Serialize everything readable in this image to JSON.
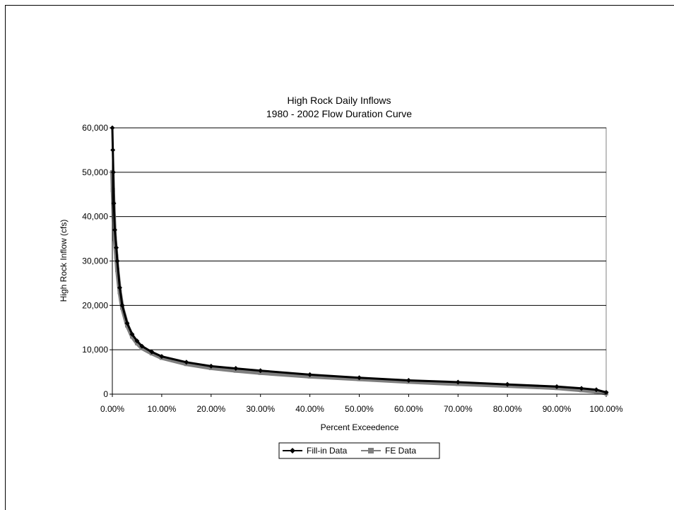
{
  "chart_data": {
    "type": "line",
    "title": "High Rock Daily Inflows",
    "subtitle": "1980 - 2002 Flow Duration Curve",
    "xlabel": "Percent Exceedence",
    "ylabel": "High Rock Inflow (cfs)",
    "xlim": [
      0,
      100
    ],
    "ylim": [
      0,
      60000
    ],
    "x_ticks": [
      0,
      10,
      20,
      30,
      40,
      50,
      60,
      70,
      80,
      90,
      100
    ],
    "x_tick_labels": [
      "0.00%",
      "10.00%",
      "20.00%",
      "30.00%",
      "40.00%",
      "50.00%",
      "60.00%",
      "70.00%",
      "80.00%",
      "90.00%",
      "100.00%"
    ],
    "y_ticks": [
      0,
      10000,
      20000,
      30000,
      40000,
      50000,
      60000
    ],
    "y_tick_labels": [
      "0",
      "10,000",
      "20,000",
      "30,000",
      "40,000",
      "50,000",
      "60,000"
    ],
    "grid": "horizontal",
    "legend_position": "bottom",
    "series": [
      {
        "name": "Fill-in Data",
        "color": "#000000",
        "marker": "diamond",
        "x": [
          0,
          0.1,
          0.2,
          0.3,
          0.5,
          0.8,
          1,
          1.5,
          2,
          3,
          4,
          5,
          6,
          8,
          10,
          15,
          20,
          25,
          30,
          40,
          50,
          60,
          70,
          80,
          90,
          95,
          98,
          100
        ],
        "y": [
          60000,
          55000,
          50000,
          43000,
          37000,
          33000,
          30000,
          24000,
          20000,
          16000,
          13500,
          12000,
          10800,
          9500,
          8500,
          7200,
          6300,
          5800,
          5300,
          4400,
          3700,
          3100,
          2700,
          2200,
          1700,
          1300,
          1000,
          400
        ]
      },
      {
        "name": "FE Data",
        "color": "#7f7f7f",
        "marker": "square",
        "x": [
          0,
          0.1,
          0.2,
          0.3,
          0.5,
          0.8,
          1,
          1.5,
          2,
          3,
          4,
          5,
          6,
          8,
          10,
          15,
          20,
          25,
          30,
          40,
          50,
          60,
          70,
          80,
          90,
          95,
          98,
          100
        ],
        "y": [
          50000,
          46000,
          43000,
          40000,
          35000,
          31000,
          28000,
          23000,
          19500,
          15500,
          13000,
          11500,
          10400,
          9200,
          8200,
          6800,
          5900,
          5300,
          4800,
          4000,
          3400,
          2800,
          2300,
          1900,
          1400,
          900,
          600,
          200
        ]
      }
    ]
  }
}
